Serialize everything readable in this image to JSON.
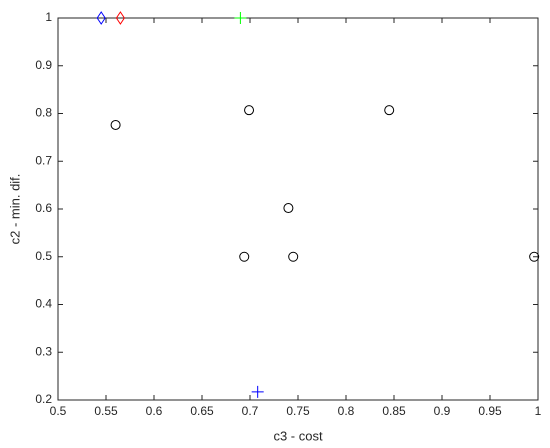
{
  "chart_data": {
    "type": "scatter",
    "xlabel": "c3 - cost",
    "ylabel": "c2 - min. dif.",
    "xlim": [
      0.5,
      1
    ],
    "ylim": [
      0.2,
      1
    ],
    "xticks": [
      0.5,
      0.55,
      0.6,
      0.65,
      0.7,
      0.75,
      0.8,
      0.85,
      0.9,
      0.95,
      1
    ],
    "yticks": [
      0.2,
      0.3,
      0.4,
      0.5,
      0.6,
      0.7,
      0.8,
      0.9,
      1
    ],
    "grid": false,
    "series": [
      {
        "color": "#000000",
        "marker": "circle",
        "x": [
          0.56,
          0.699,
          0.845,
          0.74,
          0.694,
          0.745,
          0.996
        ],
        "y": [
          0.776,
          0.807,
          0.807,
          0.602,
          0.5,
          0.5,
          0.5
        ]
      },
      {
        "color": "#0000ff",
        "marker": "diamond",
        "x": [
          0.545
        ],
        "y": [
          1
        ]
      },
      {
        "color": "#ff0000",
        "marker": "diamond",
        "x": [
          0.565
        ],
        "y": [
          1
        ]
      },
      {
        "color": "#00ff00",
        "marker": "plus",
        "x": [
          0.69
        ],
        "y": [
          1
        ]
      },
      {
        "color": "#0000ff",
        "marker": "plus",
        "x": [
          0.708
        ],
        "y": [
          0.217
        ]
      }
    ]
  }
}
